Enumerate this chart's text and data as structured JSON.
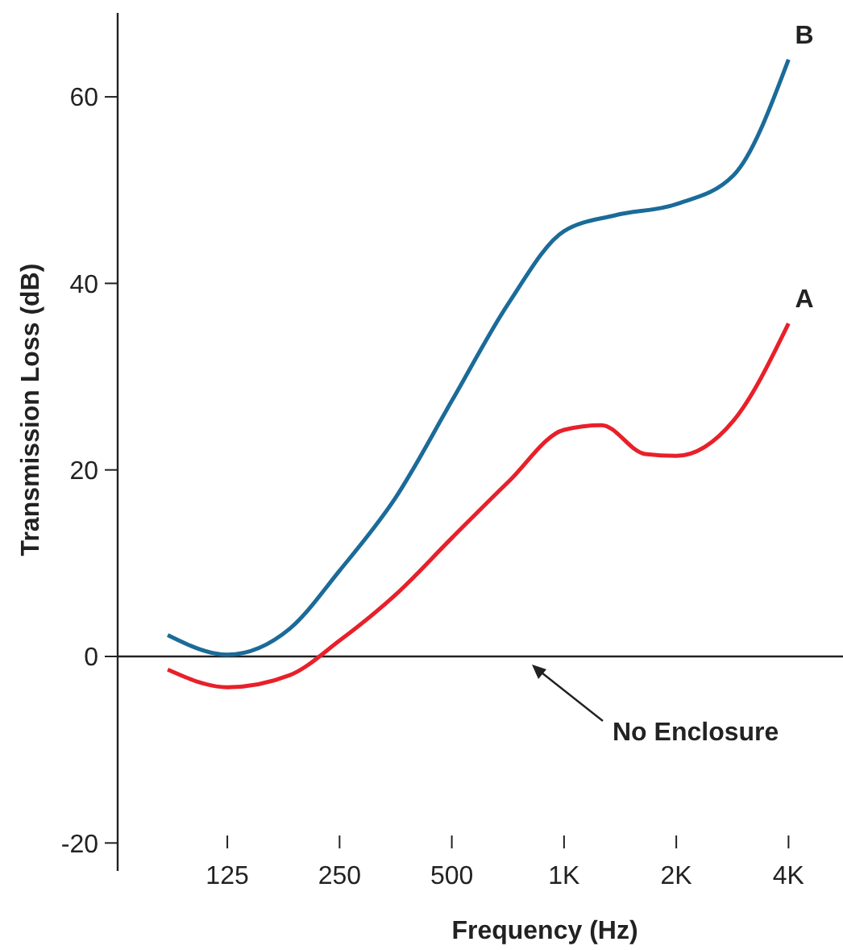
{
  "chart_data": {
    "type": "line",
    "xlabel": "Frequency (Hz)",
    "ylabel": "Transmission Loss (dB)",
    "log": "x",
    "xlim": [
      63.5,
      5600
    ],
    "ylim": [
      -23,
      69
    ],
    "xticks": [
      {
        "value": 125,
        "label": "125"
      },
      {
        "value": 250,
        "label": "250"
      },
      {
        "value": 500,
        "label": "500"
      },
      {
        "value": 1000,
        "label": "1K"
      },
      {
        "value": 2000,
        "label": "2K"
      },
      {
        "value": 4000,
        "label": "4K"
      }
    ],
    "yticks": [
      -20,
      0,
      20,
      40,
      60
    ],
    "grid": false,
    "marker": "none",
    "line_style": "solid",
    "ref_lines": [
      {
        "axis": "y",
        "value": 0,
        "label": "No Enclosure",
        "color": "#222222"
      }
    ],
    "series": [
      {
        "name": "B",
        "color": "#1b6b99",
        "x": [
          86.5,
          125,
          184,
          250,
          353,
          500,
          708,
          1000,
          1370,
          2000,
          2850,
          4000
        ],
        "values": [
          2.3,
          0.2,
          3,
          9.2,
          17,
          27.4,
          37.8,
          45.6,
          47.3,
          48.5,
          51.6,
          64
        ]
      },
      {
        "name": "A",
        "color": "#e8202a",
        "x": [
          86.5,
          125,
          184,
          250,
          353,
          500,
          708,
          1000,
          1260,
          1650,
          2000,
          2850,
          4000
        ],
        "values": [
          -1.4,
          -3.3,
          -2,
          1.7,
          6.6,
          12.7,
          18.7,
          24.3,
          24.8,
          21.7,
          21.5,
          25.3,
          35.7
        ]
      }
    ]
  }
}
